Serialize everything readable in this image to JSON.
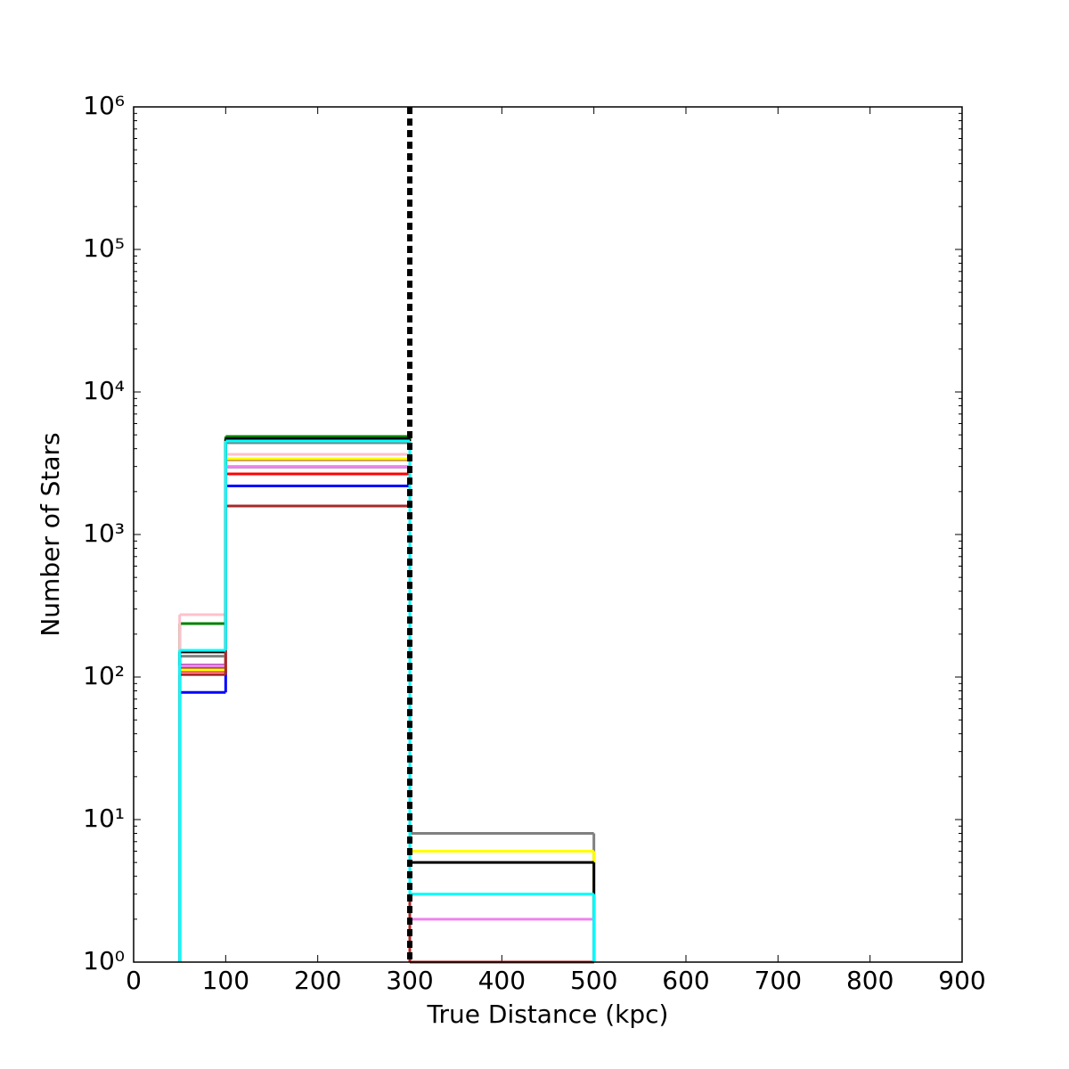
{
  "chart_data": {
    "type": "histogram",
    "xlabel": "True Distance (kpc)",
    "ylabel": "Number of Stars",
    "bins": [
      50,
      100,
      300,
      500
    ],
    "series": [
      {
        "color": "#0000ff",
        "values": [
          78,
          2190,
          0
        ]
      },
      {
        "color": "#008000",
        "values": [
          237,
          4870,
          0
        ]
      },
      {
        "color": "#ff0000",
        "values": [
          110,
          2660,
          1
        ]
      },
      {
        "color": "#800080",
        "values": [
          121,
          2985,
          0
        ]
      },
      {
        "color": "#a0522d",
        "values": [
          115,
          3350,
          0
        ]
      },
      {
        "color": "#ffc0cb",
        "values": [
          274,
          3650,
          0
        ]
      },
      {
        "color": "#808080",
        "values": [
          140,
          4400,
          8
        ]
      },
      {
        "color": "#ffff00",
        "values": [
          112,
          3400,
          6
        ]
      },
      {
        "color": "#000000",
        "values": [
          150,
          4700,
          5
        ]
      },
      {
        "color": "#ee82ee",
        "values": [
          120,
          3000,
          2
        ]
      },
      {
        "color": "#a52a2a",
        "values": [
          104,
          1585,
          1
        ]
      },
      {
        "color": "#00ffff",
        "values": [
          154,
          4530,
          3
        ]
      }
    ],
    "xlim": [
      0,
      900
    ],
    "xticks": [
      0,
      100,
      200,
      300,
      400,
      500,
      600,
      700,
      800,
      900
    ],
    "ylim": [
      1,
      1000000
    ],
    "log_y": true,
    "yticks": [
      {
        "value": 1,
        "label": "10⁰"
      },
      {
        "value": 10,
        "label": "10¹"
      },
      {
        "value": 100,
        "label": "10²"
      },
      {
        "value": 1000,
        "label": "10³"
      },
      {
        "value": 10000,
        "label": "10⁴"
      },
      {
        "value": 100000,
        "label": "10⁵"
      },
      {
        "value": 1000000,
        "label": "10⁶"
      }
    ],
    "vline": {
      "x": 300,
      "color": "#000000"
    }
  }
}
